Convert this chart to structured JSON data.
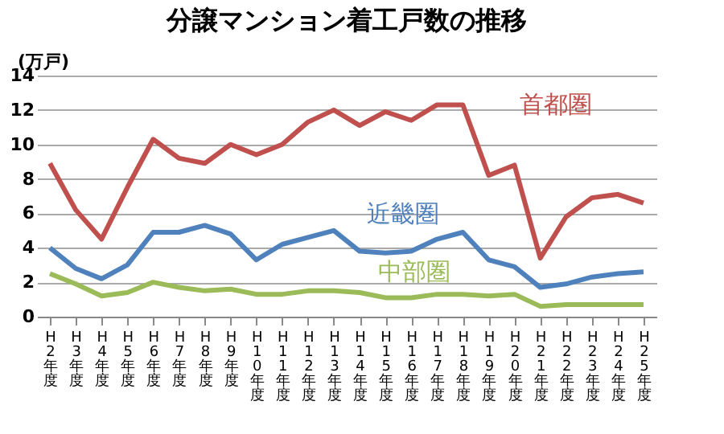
{
  "chart_data": {
    "type": "line",
    "title": "分譲マンション着工戸数の推移",
    "ylabel": "(万戸)",
    "categories": [
      "H2年度",
      "H3年度",
      "H4年度",
      "H5年度",
      "H6年度",
      "H7年度",
      "H8年度",
      "H9年度",
      "H10年度",
      "H11年度",
      "H12年度",
      "H13年度",
      "H14年度",
      "H15年度",
      "H16年度",
      "H17年度",
      "H18年度",
      "H19年度",
      "H20年度",
      "H21年度",
      "H22年度",
      "H23年度",
      "H24年度",
      "H25年度"
    ],
    "series": [
      {
        "name": "首都圏",
        "color": "#c0504d",
        "values": [
          8.9,
          6.2,
          4.5,
          7.5,
          10.3,
          9.2,
          8.9,
          10.0,
          9.4,
          10.0,
          11.3,
          12.0,
          11.1,
          11.9,
          11.4,
          12.3,
          12.3,
          8.2,
          8.8,
          3.4,
          5.8,
          6.9,
          7.1,
          6.6
        ]
      },
      {
        "name": "近畿圏",
        "color": "#4f81bd",
        "values": [
          4.0,
          2.8,
          2.2,
          3.0,
          4.9,
          4.9,
          5.3,
          4.8,
          3.3,
          4.2,
          4.6,
          5.0,
          3.8,
          3.7,
          3.8,
          4.5,
          4.9,
          3.3,
          2.9,
          1.7,
          1.9,
          2.3,
          2.5,
          2.6
        ]
      },
      {
        "name": "中部圏",
        "color": "#9bbb59",
        "values": [
          2.5,
          1.9,
          1.2,
          1.4,
          2.0,
          1.7,
          1.5,
          1.6,
          1.3,
          1.3,
          1.5,
          1.5,
          1.4,
          1.1,
          1.1,
          1.3,
          1.3,
          1.2,
          1.3,
          0.6,
          0.7,
          0.7,
          0.7,
          0.7
        ]
      }
    ],
    "ylim": [
      0,
      14
    ],
    "yticks": [
      0,
      2,
      4,
      6,
      8,
      10,
      12,
      14
    ],
    "grid": "y",
    "legend": false,
    "marker": "none",
    "line_style": "solid"
  }
}
